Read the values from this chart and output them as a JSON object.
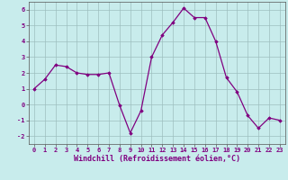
{
  "x": [
    0,
    1,
    2,
    3,
    4,
    5,
    6,
    7,
    8,
    9,
    10,
    11,
    12,
    13,
    14,
    15,
    16,
    17,
    18,
    19,
    20,
    21,
    22,
    23
  ],
  "y": [
    1.0,
    1.6,
    2.5,
    2.4,
    2.0,
    1.9,
    1.9,
    2.0,
    -0.05,
    -1.8,
    -0.4,
    3.0,
    4.4,
    5.2,
    6.1,
    5.5,
    5.5,
    4.0,
    1.7,
    0.8,
    -0.7,
    -1.5,
    -0.85,
    -1.0
  ],
  "line_color": "#800080",
  "marker": "D",
  "markersize": 1.8,
  "linewidth": 0.9,
  "bg_color": "#c8ecec",
  "grid_color": "#9dbfbf",
  "xlabel": "Windchill (Refroidissement éolien,°C)",
  "xlim": [
    -0.5,
    23.5
  ],
  "ylim": [
    -2.5,
    6.5
  ],
  "yticks": [
    -2,
    -1,
    0,
    1,
    2,
    3,
    4,
    5,
    6
  ],
  "xticks": [
    0,
    1,
    2,
    3,
    4,
    5,
    6,
    7,
    8,
    9,
    10,
    11,
    12,
    13,
    14,
    15,
    16,
    17,
    18,
    19,
    20,
    21,
    22,
    23
  ],
  "tick_fontsize": 5.0,
  "xlabel_fontsize": 6.0
}
